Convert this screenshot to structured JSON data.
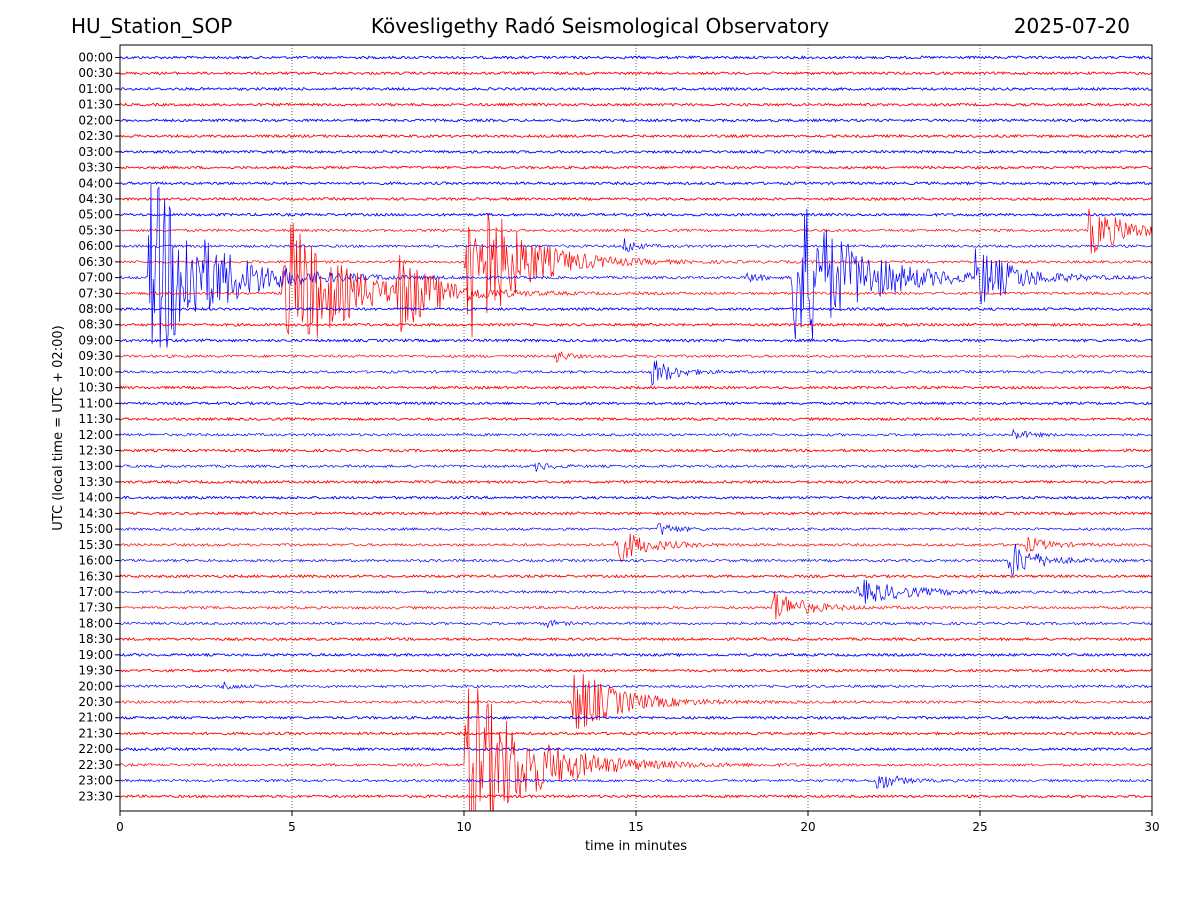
{
  "header": {
    "station": "HU_Station_SOP",
    "title": "Kövesligethy Radó Seismological Observatory",
    "date": "2025-07-20"
  },
  "chart_data": {
    "type": "line",
    "title": "Kövesligethy Radó Seismological Observatory",
    "xlabel": "time in minutes",
    "ylabel": "UTC (local time = UTC + 02:00)",
    "xlim": [
      0,
      30
    ],
    "x_ticks": [
      "0",
      "5",
      "10",
      "15",
      "20",
      "25",
      "30"
    ],
    "x_tick_values": [
      0,
      5,
      10,
      15,
      20,
      25,
      30
    ],
    "grid": "vertical dotted lines at x ticks",
    "trace_colors": [
      "#0000ff",
      "#ff0000"
    ],
    "row_labels": [
      "00:00",
      "00:30",
      "01:00",
      "01:30",
      "02:00",
      "02:30",
      "03:00",
      "03:30",
      "04:00",
      "04:30",
      "05:00",
      "05:30",
      "06:00",
      "06:30",
      "07:00",
      "07:30",
      "08:00",
      "08:30",
      "09:00",
      "09:30",
      "10:00",
      "10:30",
      "11:00",
      "11:30",
      "12:00",
      "12:30",
      "13:00",
      "13:30",
      "14:00",
      "14:30",
      "15:00",
      "15:30",
      "16:00",
      "16:30",
      "17:00",
      "17:30",
      "18:00",
      "18:30",
      "19:00",
      "19:30",
      "20:00",
      "20:30",
      "21:00",
      "21:30",
      "22:00",
      "22:30",
      "23:00",
      "23:30"
    ],
    "events": [
      {
        "row": "07:00",
        "start_min": 0.8,
        "amplitude": 1.0,
        "decay_min": 1.6
      },
      {
        "row": "07:30",
        "start_min": 4.7,
        "amplitude": 0.8,
        "decay_min": 1.5
      },
      {
        "row": "07:30",
        "start_min": 8.0,
        "amplitude": 0.35,
        "decay_min": 1.0
      },
      {
        "row": "06:30",
        "start_min": 10.0,
        "amplitude": 0.9,
        "decay_min": 1.3
      },
      {
        "row": "07:00",
        "start_min": 19.5,
        "amplitude": 0.85,
        "decay_min": 1.6
      },
      {
        "row": "07:00",
        "start_min": 24.8,
        "amplitude": 0.3,
        "decay_min": 1.0
      },
      {
        "row": "05:30",
        "start_min": 28.1,
        "amplitude": 0.25,
        "decay_min": 1.0
      },
      {
        "row": "06:00",
        "start_min": 14.6,
        "amplitude": 0.1,
        "decay_min": 0.3
      },
      {
        "row": "07:00",
        "start_min": 18.2,
        "amplitude": 0.08,
        "decay_min": 0.3
      },
      {
        "row": "09:30",
        "start_min": 12.6,
        "amplitude": 0.08,
        "decay_min": 0.3
      },
      {
        "row": "10:00",
        "start_min": 15.4,
        "amplitude": 0.15,
        "decay_min": 0.6
      },
      {
        "row": "12:00",
        "start_min": 25.9,
        "amplitude": 0.06,
        "decay_min": 0.4
      },
      {
        "row": "13:00",
        "start_min": 12.0,
        "amplitude": 0.05,
        "decay_min": 0.4
      },
      {
        "row": "15:00",
        "start_min": 15.6,
        "amplitude": 0.08,
        "decay_min": 0.4
      },
      {
        "row": "15:30",
        "start_min": 14.3,
        "amplitude": 0.2,
        "decay_min": 0.8
      },
      {
        "row": "15:30",
        "start_min": 26.3,
        "amplitude": 0.08,
        "decay_min": 0.6
      },
      {
        "row": "16:00",
        "start_min": 25.8,
        "amplitude": 0.2,
        "decay_min": 0.7
      },
      {
        "row": "17:00",
        "start_min": 21.4,
        "amplitude": 0.12,
        "decay_min": 1.3
      },
      {
        "row": "17:30",
        "start_min": 18.9,
        "amplitude": 0.18,
        "decay_min": 0.8
      },
      {
        "row": "18:00",
        "start_min": 12.3,
        "amplitude": 0.05,
        "decay_min": 0.3
      },
      {
        "row": "20:00",
        "start_min": 2.9,
        "amplitude": 0.06,
        "decay_min": 0.3
      },
      {
        "row": "20:30",
        "start_min": 13.1,
        "amplitude": 0.35,
        "decay_min": 1.2
      },
      {
        "row": "22:30",
        "start_min": 10.0,
        "amplitude": 0.9,
        "decay_min": 1.6
      },
      {
        "row": "23:00",
        "start_min": 21.9,
        "amplitude": 0.12,
        "decay_min": 0.5
      }
    ]
  }
}
